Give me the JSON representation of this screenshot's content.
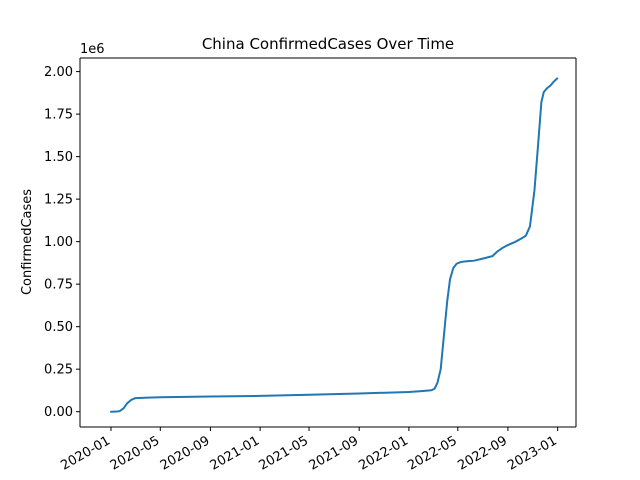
{
  "chart_data": {
    "type": "line",
    "title": "China  ConfirmedCases Over Time",
    "xlabel": "",
    "ylabel": "ConfirmedCases",
    "y_offset_label": "1e6",
    "grid": false,
    "legend": "none",
    "xlim": [
      "2019-10-17",
      "2023-02-15"
    ],
    "ylim": [
      -0.09,
      2.08
    ],
    "x_ticks": [
      "2020-01",
      "2020-05",
      "2020-09",
      "2021-01",
      "2021-05",
      "2021-09",
      "2022-01",
      "2022-05",
      "2022-09",
      "2023-01"
    ],
    "y_ticks": [
      "0.00",
      "0.25",
      "0.50",
      "0.75",
      "1.00",
      "1.25",
      "1.50",
      "1.75",
      "2.00"
    ],
    "y_tick_values": [
      0,
      0.25,
      0.5,
      0.75,
      1.0,
      1.25,
      1.5,
      1.75,
      2.0
    ],
    "series": [
      {
        "color": "#1f77b4",
        "x": [
          "2020-01-01",
          "2020-01-15",
          "2020-01-22",
          "2020-02-01",
          "2020-02-10",
          "2020-02-20",
          "2020-03-01",
          "2020-04-01",
          "2020-05-01",
          "2020-09-01",
          "2021-01-01",
          "2021-05-01",
          "2021-09-01",
          "2022-01-01",
          "2022-02-01",
          "2022-02-25",
          "2022-03-05",
          "2022-03-12",
          "2022-03-20",
          "2022-03-28",
          "2022-04-05",
          "2022-04-12",
          "2022-04-20",
          "2022-04-28",
          "2022-05-08",
          "2022-05-20",
          "2022-06-10",
          "2022-07-01",
          "2022-07-25",
          "2022-08-05",
          "2022-08-20",
          "2022-09-01",
          "2022-09-20",
          "2022-10-05",
          "2022-10-15",
          "2022-10-25",
          "2022-11-05",
          "2022-11-15",
          "2022-11-22",
          "2022-11-28",
          "2022-12-05",
          "2022-12-15",
          "2022-12-22",
          "2022-12-31"
        ],
        "values": [
          0.0,
          0.001,
          0.003,
          0.02,
          0.05,
          0.07,
          0.08,
          0.083,
          0.085,
          0.089,
          0.093,
          0.1,
          0.107,
          0.116,
          0.121,
          0.126,
          0.135,
          0.17,
          0.25,
          0.45,
          0.65,
          0.78,
          0.845,
          0.87,
          0.88,
          0.884,
          0.888,
          0.9,
          0.915,
          0.94,
          0.965,
          0.98,
          1.0,
          1.02,
          1.035,
          1.09,
          1.3,
          1.6,
          1.82,
          1.88,
          1.9,
          1.92,
          1.94,
          1.96
        ]
      }
    ]
  }
}
